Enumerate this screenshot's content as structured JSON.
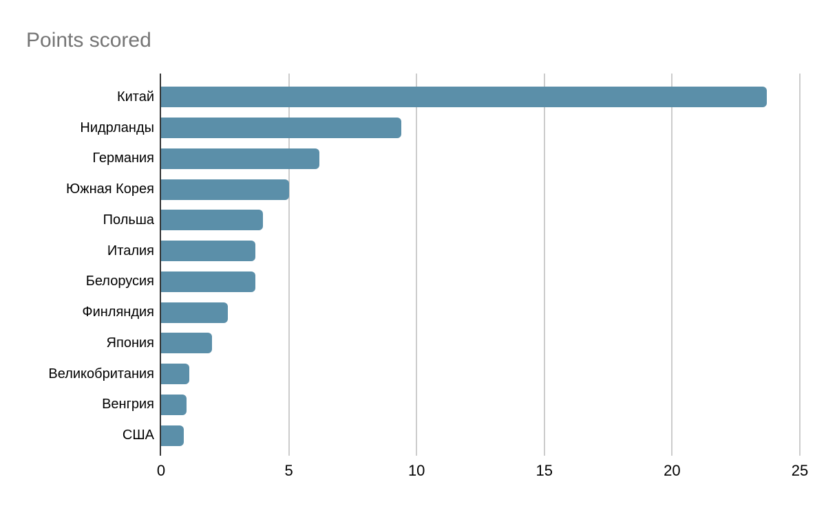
{
  "title": "Points scored",
  "chart_data": {
    "type": "bar",
    "orientation": "horizontal",
    "title": "Points scored",
    "categories": [
      "Китай",
      "Нидрланды",
      "Германия",
      "Южная Корея",
      "Польша",
      "Италия",
      "Белорусия",
      "Финляндия",
      "Япония",
      "Великобритания",
      "Венгрия",
      "США"
    ],
    "values": [
      23.7,
      9.4,
      6.2,
      5,
      4,
      3.7,
      3.7,
      2.6,
      2,
      1.1,
      1,
      0.9
    ],
    "xlabel": "",
    "ylabel": "",
    "xlim": [
      0,
      25
    ],
    "xticks": [
      0,
      5,
      10,
      15,
      20,
      25
    ],
    "grid": true,
    "legend_position": "none",
    "colors": {
      "bar": "#5b8fa9",
      "gridline": "#cccccc",
      "axis_line": "#333333",
      "title": "#757575",
      "tick_label": "#000000",
      "category_label": "#000000",
      "background": "#ffffff"
    }
  }
}
